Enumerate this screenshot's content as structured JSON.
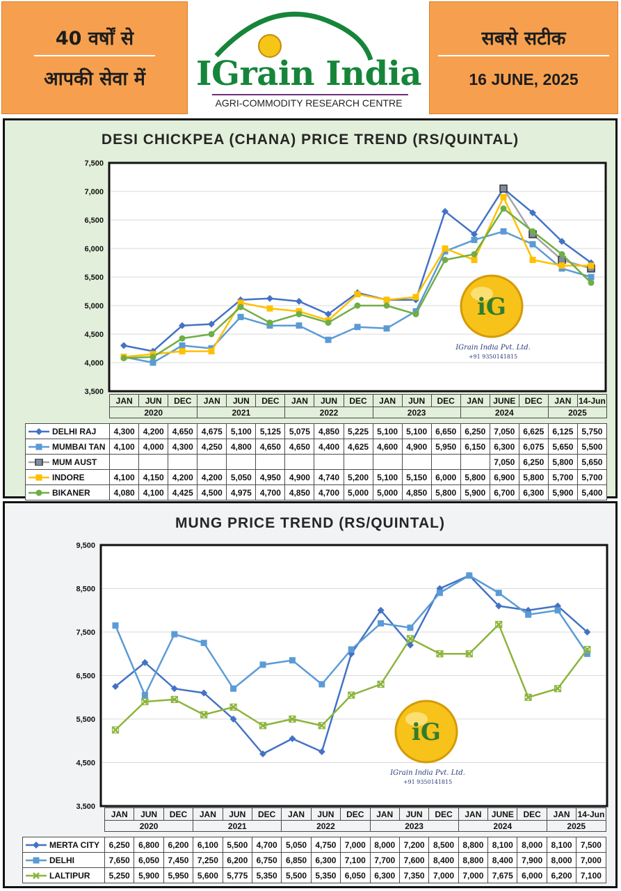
{
  "header": {
    "tagline_line1": "40 वर्षों से",
    "tagline_line2": "आपकी सेवा में",
    "logo_text": "IGrain India",
    "logo_subtitle": "AGRI-COMMODITY RESEARCH CENTRE",
    "motto": "सबसे सटीक",
    "date": "16 JUNE, 2025"
  },
  "watermark": {
    "company": "IGrain India Pvt. Ltd.",
    "phone": "+91 9350141815",
    "badge_text": "iG"
  },
  "colors": {
    "header_orange": "#f6a04f",
    "logo_green": "#16853a",
    "chana_background": "#e2efda",
    "mung_background": "#f1f3f5"
  },
  "chart_data": [
    {
      "type": "line",
      "title": "DESI CHICKPEA (CHANA) PRICE TREND (RS/QUINTAL)",
      "categories": [
        "JAN",
        "JUN",
        "DEC",
        "JAN",
        "JUN",
        "DEC",
        "JAN",
        "JUN",
        "DEC",
        "JAN",
        "JUN",
        "DEC",
        "JAN",
        "JUNE",
        "DEC",
        "JAN",
        "14-Jun"
      ],
      "years": [
        {
          "label": "2020",
          "span": 3
        },
        {
          "label": "2021",
          "span": 3
        },
        {
          "label": "2022",
          "span": 3
        },
        {
          "label": "2023",
          "span": 3
        },
        {
          "label": "2024",
          "span": 3
        },
        {
          "label": "2025",
          "span": 2
        }
      ],
      "ylim": [
        3500,
        7500
      ],
      "yticks": [
        "3,500",
        "4,000",
        "4,500",
        "5,000",
        "5,500",
        "6,000",
        "6,500",
        "7,000",
        "7,500"
      ],
      "grid": true,
      "legend": "table",
      "series": [
        {
          "name": "DELHI RAJ",
          "color": "#4472c4",
          "marker": "diamond",
          "values": [
            4300,
            4200,
            4650,
            4675,
            5100,
            5125,
            5075,
            4850,
            5225,
            5100,
            5100,
            6650,
            6250,
            7050,
            6625,
            6125,
            5750
          ],
          "labels": [
            "4,300",
            "4,200",
            "4,650",
            "4,675",
            "5,100",
            "5,125",
            "5,075",
            "4,850",
            "5,225",
            "5,100",
            "5,100",
            "6,650",
            "6,250",
            "7,050",
            "6,625",
            "6,125",
            "5,750"
          ]
        },
        {
          "name": "MUMBAI TAN",
          "color": "#5b9bd5",
          "marker": "square",
          "values": [
            4100,
            4000,
            4300,
            4250,
            4800,
            4650,
            4650,
            4400,
            4625,
            4600,
            4900,
            5950,
            6150,
            6300,
            6075,
            5650,
            5500
          ],
          "labels": [
            "4,100",
            "4,000",
            "4,300",
            "4,250",
            "4,800",
            "4,650",
            "4,650",
            "4,400",
            "4,625",
            "4,600",
            "4,900",
            "5,950",
            "6,150",
            "6,300",
            "6,075",
            "5,650",
            "5,500"
          ]
        },
        {
          "name": "MUM AUST",
          "color": "#a5a5a5",
          "marker": "square-dark",
          "values": [
            null,
            null,
            null,
            null,
            null,
            null,
            null,
            null,
            null,
            null,
            null,
            null,
            null,
            7050,
            6250,
            5800,
            5650
          ],
          "labels": [
            "",
            "",
            "",
            "",
            "",
            "",
            "",
            "",
            "",
            "",
            "",
            "",
            "",
            "7,050",
            "6,250",
            "5,800",
            "5,650"
          ]
        },
        {
          "name": "INDORE",
          "color": "#ffc000",
          "marker": "square",
          "values": [
            4100,
            4150,
            4200,
            4200,
            5050,
            4950,
            4900,
            4740,
            5200,
            5100,
            5150,
            6000,
            5800,
            6900,
            5800,
            5700,
            5700
          ],
          "labels": [
            "4,100",
            "4,150",
            "4,200",
            "4,200",
            "5,050",
            "4,950",
            "4,900",
            "4,740",
            "5,200",
            "5,100",
            "5,150",
            "6,000",
            "5,800",
            "6,900",
            "5,800",
            "5,700",
            "5,700"
          ]
        },
        {
          "name": "BIKANER",
          "color": "#70ad47",
          "marker": "circle",
          "values": [
            4080,
            4100,
            4425,
            4500,
            4975,
            4700,
            4850,
            4700,
            5000,
            5000,
            4850,
            5800,
            5900,
            6700,
            6300,
            5900,
            5400
          ],
          "labels": [
            "4,080",
            "4,100",
            "4,425",
            "4,500",
            "4,975",
            "4,700",
            "4,850",
            "4,700",
            "5,000",
            "5,000",
            "4,850",
            "5,800",
            "5,900",
            "6,700",
            "6,300",
            "5,900",
            "5,400"
          ]
        }
      ]
    },
    {
      "type": "line",
      "title": "MUNG PRICE TREND (RS/QUINTAL)",
      "categories": [
        "JAN",
        "JUN",
        "DEC",
        "JAN",
        "JUN",
        "DEC",
        "JAN",
        "JUN",
        "DEC",
        "JAN",
        "JUN",
        "DEC",
        "JAN",
        "JUNE",
        "DEC",
        "JAN",
        "14-Jun"
      ],
      "years": [
        {
          "label": "2020",
          "span": 3
        },
        {
          "label": "2021",
          "span": 3
        },
        {
          "label": "2022",
          "span": 3
        },
        {
          "label": "2023",
          "span": 3
        },
        {
          "label": "2024",
          "span": 3
        },
        {
          "label": "2025",
          "span": 2
        }
      ],
      "ylim": [
        3500,
        9500
      ],
      "yticks": [
        "3,500",
        "4,500",
        "5,500",
        "6,500",
        "7,500",
        "8,500",
        "9,500"
      ],
      "grid": true,
      "legend": "table",
      "series": [
        {
          "name": "MERTA CITY",
          "color": "#4472c4",
          "marker": "diamond",
          "values": [
            6250,
            6800,
            6200,
            6100,
            5500,
            4700,
            5050,
            4750,
            7000,
            8000,
            7200,
            8500,
            8800,
            8100,
            8000,
            8100,
            7500
          ],
          "labels": [
            "6,250",
            "6,800",
            "6,200",
            "6,100",
            "5,500",
            "4,700",
            "5,050",
            "4,750",
            "7,000",
            "8,000",
            "7,200",
            "8,500",
            "8,800",
            "8,100",
            "8,000",
            "8,100",
            "7,500"
          ]
        },
        {
          "name": "DELHI",
          "color": "#5b9bd5",
          "marker": "square",
          "values": [
            7650,
            6050,
            7450,
            7250,
            6200,
            6750,
            6850,
            6300,
            7100,
            7700,
            7600,
            8400,
            8800,
            8400,
            7900,
            8000,
            7000
          ],
          "labels": [
            "7,650",
            "6,050",
            "7,450",
            "7,250",
            "6,200",
            "6,750",
            "6,850",
            "6,300",
            "7,100",
            "7,700",
            "7,600",
            "8,400",
            "8,800",
            "8,400",
            "7,900",
            "8,000",
            "7,000"
          ]
        },
        {
          "name": "LALTIPUR",
          "color": "#8cb43c",
          "marker": "cross",
          "values": [
            5250,
            5900,
            5950,
            5600,
            5775,
            5350,
            5500,
            5350,
            6050,
            6300,
            7350,
            7000,
            7000,
            7675,
            6000,
            6200,
            7100
          ],
          "labels": [
            "5,250",
            "5,900",
            "5,950",
            "5,600",
            "5,775",
            "5,350",
            "5,500",
            "5,350",
            "6,050",
            "6,300",
            "7,350",
            "7,000",
            "7,000",
            "7,675",
            "6,000",
            "6,200",
            "7,100"
          ]
        }
      ]
    }
  ]
}
